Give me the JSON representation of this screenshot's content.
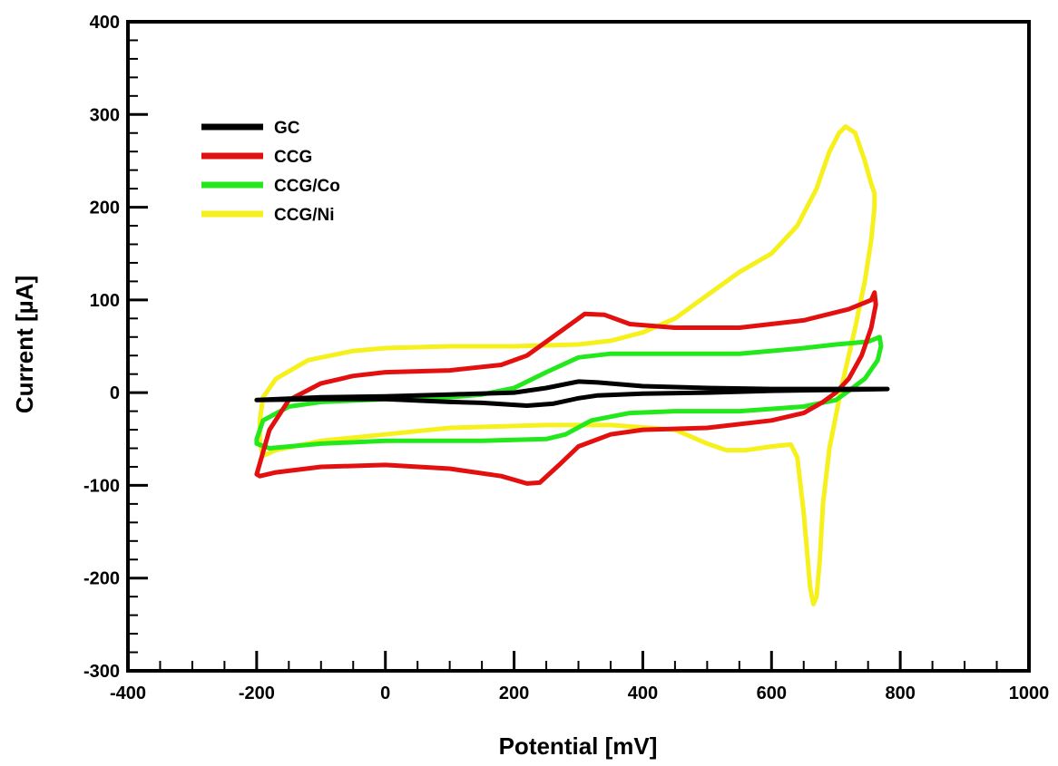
{
  "chart_data": {
    "type": "line",
    "xlabel": "Potential [mV]",
    "ylabel": "Current [µA]",
    "xlim": [
      -400,
      1000
    ],
    "ylim": [
      -300,
      400
    ],
    "xticks": [
      -400,
      -200,
      0,
      200,
      400,
      600,
      800,
      1000
    ],
    "yticks": [
      -300,
      -200,
      -100,
      0,
      100,
      200,
      300,
      400
    ],
    "grid": false,
    "legend_position": "top-left",
    "series": [
      {
        "name": "GC",
        "color": "#000000",
        "points": [
          [
            -200,
            -8
          ],
          [
            -100,
            -5
          ],
          [
            0,
            -4
          ],
          [
            100,
            -2
          ],
          [
            200,
            0
          ],
          [
            250,
            5
          ],
          [
            300,
            12
          ],
          [
            330,
            11
          ],
          [
            400,
            7
          ],
          [
            500,
            5
          ],
          [
            600,
            4
          ],
          [
            700,
            4
          ],
          [
            780,
            4
          ],
          [
            700,
            3
          ],
          [
            600,
            2
          ],
          [
            500,
            0
          ],
          [
            400,
            -1
          ],
          [
            330,
            -3
          ],
          [
            300,
            -6
          ],
          [
            260,
            -12
          ],
          [
            220,
            -14
          ],
          [
            150,
            -11
          ],
          [
            100,
            -10
          ],
          [
            0,
            -7
          ],
          [
            -100,
            -7
          ],
          [
            -200,
            -8
          ]
        ]
      },
      {
        "name": "CCG",
        "color": "#e31010",
        "points": [
          [
            -200,
            -88
          ],
          [
            -180,
            -40
          ],
          [
            -150,
            -8
          ],
          [
            -100,
            10
          ],
          [
            -50,
            18
          ],
          [
            0,
            22
          ],
          [
            100,
            24
          ],
          [
            180,
            30
          ],
          [
            220,
            40
          ],
          [
            270,
            65
          ],
          [
            310,
            85
          ],
          [
            340,
            84
          ],
          [
            380,
            74
          ],
          [
            450,
            70
          ],
          [
            550,
            70
          ],
          [
            650,
            78
          ],
          [
            720,
            90
          ],
          [
            755,
            100
          ],
          [
            760,
            108
          ],
          [
            762,
            95
          ],
          [
            755,
            70
          ],
          [
            740,
            40
          ],
          [
            720,
            15
          ],
          [
            700,
            0
          ],
          [
            680,
            -10
          ],
          [
            650,
            -22
          ],
          [
            600,
            -30
          ],
          [
            500,
            -38
          ],
          [
            400,
            -40
          ],
          [
            350,
            -45
          ],
          [
            300,
            -58
          ],
          [
            270,
            -78
          ],
          [
            240,
            -97
          ],
          [
            220,
            -98
          ],
          [
            180,
            -90
          ],
          [
            100,
            -82
          ],
          [
            0,
            -78
          ],
          [
            -100,
            -80
          ],
          [
            -170,
            -86
          ],
          [
            -195,
            -90
          ],
          [
            -200,
            -88
          ]
        ]
      },
      {
        "name": "CCG/Co",
        "color": "#22e81c",
        "points": [
          [
            -200,
            -50
          ],
          [
            -190,
            -30
          ],
          [
            -150,
            -15
          ],
          [
            -100,
            -10
          ],
          [
            0,
            -7
          ],
          [
            100,
            -5
          ],
          [
            150,
            -2
          ],
          [
            200,
            5
          ],
          [
            250,
            22
          ],
          [
            300,
            38
          ],
          [
            350,
            42
          ],
          [
            450,
            42
          ],
          [
            550,
            42
          ],
          [
            650,
            48
          ],
          [
            700,
            52
          ],
          [
            750,
            55
          ],
          [
            768,
            60
          ],
          [
            770,
            50
          ],
          [
            765,
            35
          ],
          [
            745,
            15
          ],
          [
            720,
            2
          ],
          [
            700,
            -8
          ],
          [
            650,
            -15
          ],
          [
            550,
            -20
          ],
          [
            450,
            -20
          ],
          [
            380,
            -22
          ],
          [
            320,
            -30
          ],
          [
            280,
            -45
          ],
          [
            250,
            -50
          ],
          [
            150,
            -52
          ],
          [
            0,
            -52
          ],
          [
            -100,
            -55
          ],
          [
            -180,
            -60
          ],
          [
            -200,
            -55
          ],
          [
            -200,
            -50
          ]
        ]
      },
      {
        "name": "CCG/Ni",
        "color": "#f6f01d",
        "points": [
          [
            -195,
            -30
          ],
          [
            -190,
            -5
          ],
          [
            -170,
            15
          ],
          [
            -120,
            35
          ],
          [
            -50,
            45
          ],
          [
            0,
            48
          ],
          [
            100,
            50
          ],
          [
            200,
            50
          ],
          [
            300,
            52
          ],
          [
            350,
            56
          ],
          [
            400,
            65
          ],
          [
            450,
            80
          ],
          [
            500,
            105
          ],
          [
            550,
            130
          ],
          [
            600,
            150
          ],
          [
            640,
            180
          ],
          [
            670,
            220
          ],
          [
            690,
            260
          ],
          [
            705,
            280
          ],
          [
            715,
            287
          ],
          [
            730,
            280
          ],
          [
            745,
            250
          ],
          [
            755,
            225
          ],
          [
            760,
            215
          ],
          [
            760,
            200
          ],
          [
            755,
            165
          ],
          [
            745,
            120
          ],
          [
            730,
            70
          ],
          [
            710,
            10
          ],
          [
            690,
            -60
          ],
          [
            680,
            -120
          ],
          [
            675,
            -180
          ],
          [
            670,
            -220
          ],
          [
            665,
            -228
          ],
          [
            660,
            -210
          ],
          [
            650,
            -130
          ],
          [
            640,
            -70
          ],
          [
            630,
            -56
          ],
          [
            600,
            -58
          ],
          [
            560,
            -62
          ],
          [
            530,
            -62
          ],
          [
            500,
            -55
          ],
          [
            450,
            -40
          ],
          [
            350,
            -35
          ],
          [
            250,
            -35
          ],
          [
            100,
            -38
          ],
          [
            0,
            -45
          ],
          [
            -100,
            -52
          ],
          [
            -170,
            -62
          ],
          [
            -190,
            -68
          ],
          [
            -195,
            -55
          ],
          [
            -195,
            -30
          ]
        ]
      }
    ]
  }
}
